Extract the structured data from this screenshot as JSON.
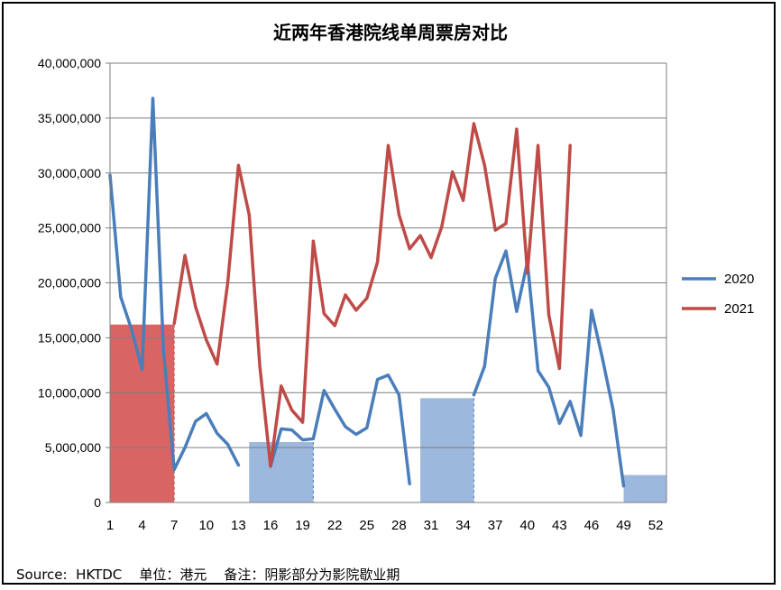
{
  "title": "近两年香港院线单周票房对比",
  "footer": {
    "source": "Source:  HKTDC",
    "unit": "单位：港元",
    "note": "备注：阴影部分为影院歇业期"
  },
  "chart_data": {
    "type": "line",
    "title": "近两年香港院线单周票房对比",
    "xlabel": "",
    "ylabel": "",
    "xlim": [
      1,
      53
    ],
    "ylim": [
      0,
      40000000
    ],
    "x_ticks": [
      1,
      4,
      7,
      10,
      13,
      16,
      19,
      22,
      25,
      28,
      31,
      34,
      37,
      40,
      43,
      46,
      49,
      52
    ],
    "y_ticks": [
      0,
      5000000,
      10000000,
      15000000,
      20000000,
      25000000,
      30000000,
      35000000,
      40000000
    ],
    "y_tick_labels": [
      "0",
      "5,000,000",
      "10,000,000",
      "15,000,000",
      "20,000,000",
      "25,000,000",
      "30,000,000",
      "35,000,000",
      "40,000,000"
    ],
    "grid": "horizontal",
    "legend_position": "right",
    "series": [
      {
        "name": "2020",
        "color": "#4a7ebb",
        "segments": [
          [
            [
              1,
              29800000
            ],
            [
              2,
              18700000
            ],
            [
              3,
              15800000
            ],
            [
              4,
              12100000
            ],
            [
              5,
              36800000
            ],
            [
              6,
              13800000
            ],
            [
              7,
              3000000
            ],
            [
              8,
              5000000
            ],
            [
              9,
              7400000
            ],
            [
              10,
              8100000
            ],
            [
              11,
              6300000
            ],
            [
              12,
              5300000
            ],
            [
              13,
              3400000
            ]
          ],
          [
            [
              16,
              3300000
            ],
            [
              17,
              6700000
            ],
            [
              18,
              6600000
            ],
            [
              19,
              5700000
            ],
            [
              20,
              5800000
            ],
            [
              21,
              10200000
            ],
            [
              22,
              8500000
            ],
            [
              23,
              6900000
            ],
            [
              24,
              6200000
            ],
            [
              25,
              6800000
            ],
            [
              26,
              11200000
            ],
            [
              27,
              11600000
            ],
            [
              28,
              9800000
            ],
            [
              29,
              1700000
            ]
          ],
          [
            [
              35,
              9800000
            ],
            [
              36,
              12400000
            ],
            [
              37,
              20400000
            ],
            [
              38,
              22900000
            ],
            [
              39,
              17400000
            ],
            [
              40,
              21900000
            ],
            [
              41,
              12000000
            ],
            [
              42,
              10500000
            ],
            [
              43,
              7200000
            ],
            [
              44,
              9200000
            ],
            [
              45,
              6100000
            ],
            [
              46,
              17500000
            ],
            [
              47,
              13200000
            ],
            [
              48,
              8500000
            ],
            [
              49,
              1500000
            ]
          ]
        ]
      },
      {
        "name": "2021",
        "color": "#be4b48",
        "segments": [
          [
            [
              7,
              16300000
            ],
            [
              8,
              22500000
            ],
            [
              9,
              17800000
            ],
            [
              10,
              14800000
            ],
            [
              11,
              12600000
            ],
            [
              12,
              20000000
            ],
            [
              13,
              30700000
            ],
            [
              14,
              26200000
            ],
            [
              15,
              12400000
            ],
            [
              16,
              3300000
            ],
            [
              17,
              10600000
            ],
            [
              18,
              8400000
            ],
            [
              19,
              7300000
            ],
            [
              20,
              23800000
            ],
            [
              21,
              17200000
            ],
            [
              22,
              16100000
            ],
            [
              23,
              18900000
            ],
            [
              24,
              17500000
            ],
            [
              25,
              18600000
            ],
            [
              26,
              21900000
            ],
            [
              27,
              32500000
            ],
            [
              28,
              26200000
            ],
            [
              29,
              23100000
            ],
            [
              30,
              24300000
            ],
            [
              31,
              22300000
            ],
            [
              32,
              25100000
            ],
            [
              33,
              30100000
            ],
            [
              34,
              27500000
            ],
            [
              35,
              34500000
            ],
            [
              36,
              30700000
            ],
            [
              37,
              24800000
            ],
            [
              38,
              25400000
            ],
            [
              39,
              34000000
            ],
            [
              40,
              20900000
            ],
            [
              41,
              32500000
            ],
            [
              42,
              17100000
            ],
            [
              43,
              12200000
            ],
            [
              44,
              32500000
            ]
          ]
        ]
      }
    ],
    "shaded_regions": [
      {
        "year": "2021",
        "x_start": 1,
        "x_end": 7,
        "y_value": 16200000,
        "color": "#d96464"
      },
      {
        "year": "2020",
        "x_start": 14,
        "x_end": 20,
        "y_value": 5500000,
        "color": "#9cb8dd"
      },
      {
        "year": "2020",
        "x_start": 30,
        "x_end": 35,
        "y_value": 9500000,
        "color": "#9cb8dd"
      },
      {
        "year": "2020",
        "x_start": 49,
        "x_end": 53,
        "y_value": 2500000,
        "color": "#9cb8dd"
      }
    ]
  }
}
